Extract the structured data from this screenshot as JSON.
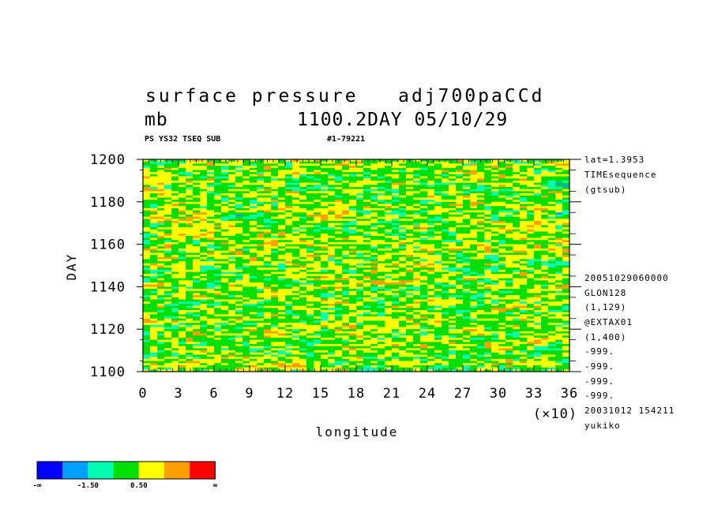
{
  "header": {
    "title_line1": "surface pressure   adj700paCCd",
    "title_line2": "mb           1100.2DAY 05/10/29",
    "sub_left": "PS YS32 TSEQ SUB",
    "sub_right": "#1-79221"
  },
  "side_info": {
    "top": [
      "lat=1.3953",
      "TIMEsequence",
      "(gtsub)"
    ],
    "bottom": [
      "20051029060000",
      "GLON128",
      "(1,129)",
      "@EXTAX01",
      "(1,400)",
      "-999.",
      "-999.",
      "-999.",
      "-999.",
      "20031012 154211",
      "yukiko"
    ]
  },
  "chart_data": {
    "type": "heatmap",
    "xlabel": "longitude",
    "ylabel": "DAY",
    "x_multiplier_label": "(×10)",
    "xlim": [
      0,
      36
    ],
    "ylim": [
      1100,
      1200
    ],
    "x_ticks": [
      "0",
      "3",
      "6",
      "9",
      "12",
      "15",
      "18",
      "21",
      "24",
      "27",
      "30",
      "33",
      "36"
    ],
    "y_ticks": [
      "1100",
      "1120",
      "1140",
      "1160",
      "1180",
      "1200"
    ],
    "colorbar": {
      "colors": [
        "#0000ff",
        "#00a0ff",
        "#00ffb0",
        "#00e000",
        "#ffff00",
        "#ffa000",
        "#ff0000"
      ],
      "labels": [
        "-∞",
        "-1.50",
        "0.50",
        "∞"
      ]
    }
  }
}
